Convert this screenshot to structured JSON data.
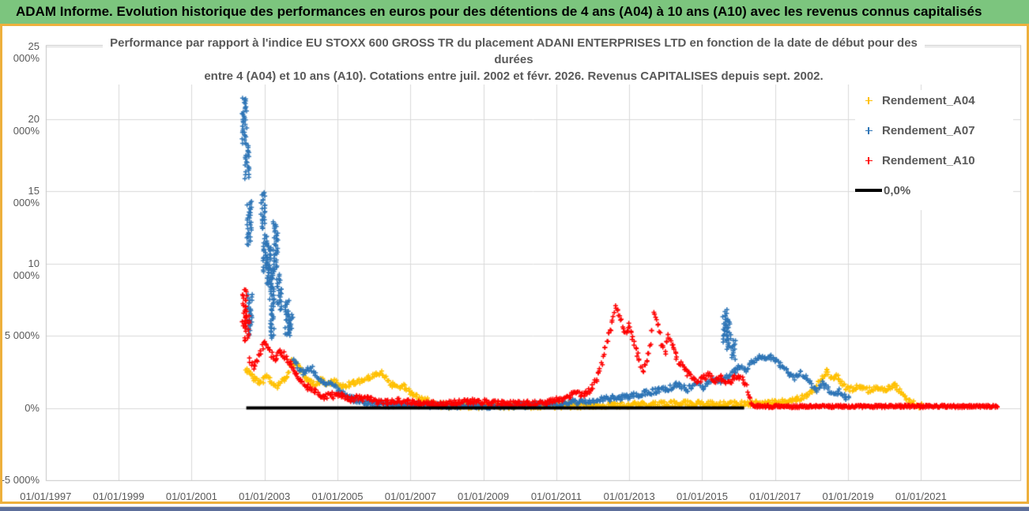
{
  "banner": {
    "title": "ADAM Informe. Evolution historique des performances en euros pour des détentions de 4 ans (A04) à 10 ans (A10) avec les revenus connus capitalisés"
  },
  "chart_data": {
    "type": "scatter",
    "title_line1": "Performance par rapport à l'indice EU STOXX 600 GROSS TR  du placement ADANI ENTERPRISES LTD en fonction de la date de début pour des durées",
    "title_line2": "entre 4 (A04) et 10 ans (A10). Cotations entre juil. 2002 et févr. 2026. Revenus CAPITALISES depuis sept. 2002.",
    "xlabel": "",
    "ylabel": "",
    "grid": true,
    "legend_position": "right",
    "y_axis": {
      "min": -5000,
      "max": 25000,
      "unit": "%",
      "ticks": [
        {
          "value": 25000,
          "label": "25 000%"
        },
        {
          "value": 20000,
          "label": "20 000%"
        },
        {
          "value": 15000,
          "label": "15 000%"
        },
        {
          "value": 10000,
          "label": "10 000%"
        },
        {
          "value": 5000,
          "label": "5 000%"
        },
        {
          "value": 0,
          "label": "0%"
        },
        {
          "value": -5000,
          "label": "-5 000%"
        }
      ]
    },
    "x_axis": {
      "ticks": [
        {
          "year": 1997,
          "label": "01/01/1997"
        },
        {
          "year": 1999,
          "label": "01/01/1999"
        },
        {
          "year": 2001,
          "label": "01/01/2001"
        },
        {
          "year": 2003,
          "label": "01/01/2003"
        },
        {
          "year": 2005,
          "label": "01/01/2005"
        },
        {
          "year": 2007,
          "label": "01/01/2007"
        },
        {
          "year": 2009,
          "label": "01/01/2009"
        },
        {
          "year": 2011,
          "label": "01/01/2011"
        },
        {
          "year": 2013,
          "label": "01/01/2013"
        },
        {
          "year": 2015,
          "label": "01/01/2015"
        },
        {
          "year": 2017,
          "label": "01/01/2017"
        },
        {
          "year": 2019,
          "label": "01/01/2019"
        },
        {
          "year": 2021,
          "label": "01/01/2021"
        }
      ]
    },
    "series": [
      {
        "name": "Rendement_A04",
        "color": "#FFC000",
        "marker": "plus",
        "path": [
          [
            2002.5,
            2700
          ],
          [
            2002.62,
            2300
          ],
          [
            2002.75,
            1950
          ],
          [
            2002.9,
            1800
          ],
          [
            2003.05,
            2150
          ],
          [
            2003.2,
            1850
          ],
          [
            2003.35,
            1550
          ],
          [
            2003.5,
            1900
          ],
          [
            2003.62,
            2300
          ],
          [
            2003.75,
            3200
          ],
          [
            2003.88,
            3050
          ],
          [
            2004.0,
            2600
          ],
          [
            2004.12,
            2050
          ],
          [
            2004.25,
            1800
          ],
          [
            2004.4,
            1600
          ],
          [
            2004.55,
            1950
          ],
          [
            2004.7,
            1700
          ],
          [
            2004.85,
            1850
          ],
          [
            2005.0,
            1700
          ],
          [
            2005.15,
            1500
          ],
          [
            2005.3,
            1650
          ],
          [
            2005.5,
            1750
          ],
          [
            2005.7,
            1950
          ],
          [
            2005.9,
            2100
          ],
          [
            2006.05,
            2250
          ],
          [
            2006.2,
            2400
          ],
          [
            2006.35,
            2050
          ],
          [
            2006.5,
            1600
          ],
          [
            2006.65,
            1350
          ],
          [
            2006.8,
            1500
          ],
          [
            2006.95,
            1200
          ],
          [
            2007.1,
            900
          ],
          [
            2007.3,
            650
          ],
          [
            2007.5,
            450
          ],
          [
            2007.75,
            250
          ],
          [
            2008.0,
            150
          ],
          [
            2008.5,
            130
          ],
          [
            2009.0,
            120
          ],
          [
            2009.5,
            130
          ],
          [
            2010.0,
            140
          ],
          [
            2010.5,
            150
          ],
          [
            2011.0,
            160
          ],
          [
            2011.5,
            170
          ],
          [
            2012.0,
            180
          ],
          [
            2012.5,
            200
          ],
          [
            2013.0,
            220
          ],
          [
            2013.5,
            250
          ],
          [
            2014.0,
            280
          ],
          [
            2014.5,
            330
          ],
          [
            2015.0,
            280
          ],
          [
            2015.5,
            250
          ],
          [
            2016.0,
            300
          ],
          [
            2016.5,
            320
          ],
          [
            2017.0,
            380
          ],
          [
            2017.4,
            500
          ],
          [
            2017.7,
            700
          ],
          [
            2017.95,
            1000
          ],
          [
            2018.15,
            1500
          ],
          [
            2018.3,
            2100
          ],
          [
            2018.42,
            2500
          ],
          [
            2018.55,
            2000
          ],
          [
            2018.68,
            2250
          ],
          [
            2018.8,
            1800
          ],
          [
            2018.95,
            1450
          ],
          [
            2019.1,
            1300
          ],
          [
            2019.25,
            1500
          ],
          [
            2019.4,
            1350
          ],
          [
            2019.55,
            1200
          ],
          [
            2019.7,
            1350
          ],
          [
            2019.85,
            1300
          ],
          [
            2020.0,
            1250
          ],
          [
            2020.15,
            1400
          ],
          [
            2020.3,
            1550
          ],
          [
            2020.45,
            1150
          ],
          [
            2020.6,
            700
          ],
          [
            2020.75,
            400
          ],
          [
            2020.9,
            200
          ],
          [
            2021.05,
            130
          ]
        ]
      },
      {
        "name": "Rendement_A07",
        "color": "#2E75B6",
        "marker": "plus",
        "clusters": [
          [
            2002.45,
            18300,
            21500
          ],
          [
            2002.52,
            15900,
            18200
          ],
          [
            2002.58,
            11300,
            14300
          ],
          [
            2002.6,
            5100,
            7900
          ],
          [
            2002.95,
            12400,
            14900
          ],
          [
            2003.02,
            9400,
            12000
          ],
          [
            2003.12,
            8200,
            11500
          ],
          [
            2003.2,
            4800,
            9800
          ],
          [
            2003.3,
            9500,
            12900
          ],
          [
            2003.4,
            6800,
            9200
          ],
          [
            2003.62,
            5100,
            7450
          ],
          [
            2003.72,
            5000,
            6500
          ],
          [
            2015.62,
            4600,
            6750
          ],
          [
            2015.72,
            4100,
            6100
          ],
          [
            2015.85,
            3400,
            4700
          ]
        ],
        "path": [
          [
            2003.8,
            3300
          ],
          [
            2003.95,
            2700
          ],
          [
            2004.1,
            2350
          ],
          [
            2004.25,
            2900
          ],
          [
            2004.4,
            2400
          ],
          [
            2004.55,
            1900
          ],
          [
            2004.7,
            1500
          ],
          [
            2004.85,
            1800
          ],
          [
            2005.0,
            1300
          ],
          [
            2005.2,
            900
          ],
          [
            2005.45,
            600
          ],
          [
            2005.7,
            400
          ],
          [
            2006.0,
            280
          ],
          [
            2006.5,
            220
          ],
          [
            2007.0,
            200
          ],
          [
            2007.5,
            170
          ],
          [
            2008.0,
            150
          ],
          [
            2008.5,
            140
          ],
          [
            2009.0,
            130
          ],
          [
            2009.5,
            140
          ],
          [
            2010.0,
            160
          ],
          [
            2010.5,
            220
          ],
          [
            2011.0,
            320
          ],
          [
            2011.5,
            420
          ],
          [
            2012.0,
            520
          ],
          [
            2012.5,
            650
          ],
          [
            2013.0,
            800
          ],
          [
            2013.4,
            1000
          ],
          [
            2013.8,
            1200
          ],
          [
            2014.1,
            1400
          ],
          [
            2014.35,
            1600
          ],
          [
            2014.6,
            1300
          ],
          [
            2014.85,
            1700
          ],
          [
            2015.05,
            1400
          ],
          [
            2015.3,
            2100
          ],
          [
            2015.5,
            1800
          ],
          [
            2016.05,
            2900
          ],
          [
            2016.2,
            2600
          ],
          [
            2016.35,
            3100
          ],
          [
            2016.5,
            3400
          ],
          [
            2016.65,
            3550
          ],
          [
            2016.8,
            3400
          ],
          [
            2016.95,
            3500
          ],
          [
            2017.1,
            3100
          ],
          [
            2017.25,
            2700
          ],
          [
            2017.4,
            2300
          ],
          [
            2017.55,
            2050
          ],
          [
            2017.7,
            2400
          ],
          [
            2017.85,
            2100
          ],
          [
            2018.0,
            1550
          ],
          [
            2018.15,
            1250
          ],
          [
            2018.3,
            1700
          ],
          [
            2018.45,
            1300
          ],
          [
            2018.6,
            950
          ],
          [
            2018.75,
            1150
          ],
          [
            2018.9,
            800
          ],
          [
            2019.05,
            600
          ]
        ]
      },
      {
        "name": "Rendement_A10",
        "color": "#FF0000",
        "marker": "plus",
        "clusters": [
          [
            2002.45,
            5700,
            8200
          ],
          [
            2002.52,
            4600,
            6400
          ]
        ],
        "path": [
          [
            2002.6,
            3300
          ],
          [
            2002.7,
            2800
          ],
          [
            2002.8,
            3300
          ],
          [
            2002.9,
            3900
          ],
          [
            2003.0,
            4580
          ],
          [
            2003.1,
            4200
          ],
          [
            2003.2,
            3700
          ],
          [
            2003.3,
            3400
          ],
          [
            2003.42,
            3950
          ],
          [
            2003.52,
            3700
          ],
          [
            2003.65,
            3250
          ],
          [
            2003.78,
            2700
          ],
          [
            2003.9,
            2100
          ],
          [
            2004.05,
            1800
          ],
          [
            2004.2,
            1450
          ],
          [
            2004.35,
            1150
          ],
          [
            2004.5,
            900
          ],
          [
            2004.65,
            700
          ],
          [
            2004.8,
            950
          ],
          [
            2004.95,
            800
          ],
          [
            2005.1,
            900
          ],
          [
            2005.25,
            700
          ],
          [
            2005.4,
            600
          ],
          [
            2005.55,
            750
          ],
          [
            2005.7,
            650
          ],
          [
            2005.85,
            700
          ],
          [
            2006.0,
            500
          ],
          [
            2006.2,
            380
          ],
          [
            2006.4,
            450
          ],
          [
            2006.6,
            520
          ],
          [
            2006.8,
            430
          ],
          [
            2007.0,
            380
          ],
          [
            2007.3,
            320
          ],
          [
            2007.6,
            280
          ],
          [
            2008.0,
            320
          ],
          [
            2008.4,
            400
          ],
          [
            2008.8,
            450
          ],
          [
            2009.2,
            350
          ],
          [
            2009.6,
            280
          ],
          [
            2010.0,
            280
          ],
          [
            2010.4,
            330
          ],
          [
            2010.8,
            420
          ],
          [
            2011.1,
            600
          ],
          [
            2011.35,
            850
          ],
          [
            2011.55,
            1000
          ],
          [
            2011.75,
            900
          ],
          [
            2011.95,
            1300
          ],
          [
            2012.1,
            2000
          ],
          [
            2012.25,
            3100
          ],
          [
            2012.4,
            4600
          ],
          [
            2012.52,
            5900
          ],
          [
            2012.62,
            7000
          ],
          [
            2012.72,
            6400
          ],
          [
            2012.82,
            5600
          ],
          [
            2012.92,
            5200
          ],
          [
            2013.0,
            5700
          ],
          [
            2013.08,
            4900
          ],
          [
            2013.18,
            4100
          ],
          [
            2013.28,
            3300
          ],
          [
            2013.38,
            2600
          ],
          [
            2013.48,
            3100
          ],
          [
            2013.58,
            4300
          ],
          [
            2013.68,
            6500
          ],
          [
            2013.78,
            5700
          ],
          [
            2013.88,
            4500
          ],
          [
            2013.98,
            3900
          ],
          [
            2014.08,
            5000
          ],
          [
            2014.18,
            4400
          ],
          [
            2014.3,
            3400
          ],
          [
            2014.45,
            2800
          ],
          [
            2014.6,
            2400
          ],
          [
            2014.75,
            2100
          ],
          [
            2014.9,
            1800
          ],
          [
            2015.05,
            2100
          ],
          [
            2015.2,
            2300
          ],
          [
            2015.35,
            1900
          ],
          [
            2015.5,
            2100
          ],
          [
            2015.65,
            1700
          ],
          [
            2015.8,
            1900
          ],
          [
            2015.95,
            2200
          ],
          [
            2016.1,
            2000
          ],
          [
            2016.2,
            1500
          ],
          [
            2016.3,
            600
          ],
          [
            2016.38,
            200
          ]
        ],
        "flat": {
          "from": 2016.4,
          "to": 2023.1,
          "value": 110
        }
      },
      {
        "name": "0,0%",
        "color": "#000000",
        "marker": "line",
        "role": "zero-line",
        "from": 2002.5,
        "to": 2016.15,
        "value": 0
      }
    ]
  }
}
